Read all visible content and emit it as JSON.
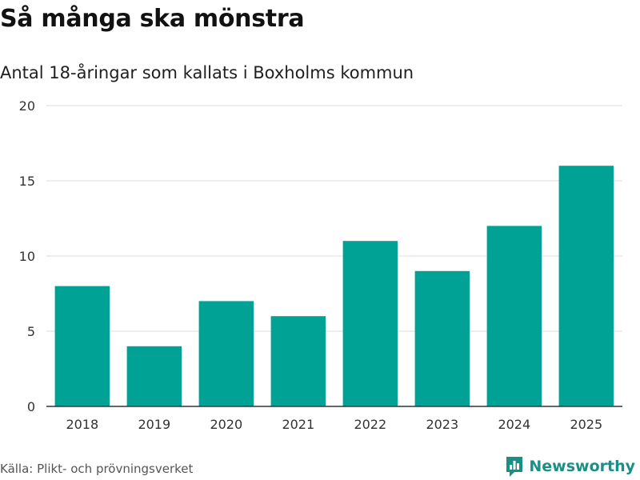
{
  "title": "Så många ska mönstra",
  "subtitle": "Antal 18-åringar som kallats i Boxholms kommun",
  "source": "Källa: Plikt- och prövningsverket",
  "brand": {
    "name": "Newsworthy",
    "logo_icon": "newsworthy-bar-chart-logo",
    "color": "#1a8f86"
  },
  "colors": {
    "bar": "#00a295",
    "grid": "#dddddd",
    "axis": "#333333"
  },
  "chart_data": {
    "type": "bar",
    "title": "Så många ska mönstra",
    "subtitle": "Antal 18-åringar som kallats i Boxholms kommun",
    "xlabel": "",
    "ylabel": "",
    "categories": [
      "2018",
      "2019",
      "2020",
      "2021",
      "2022",
      "2023",
      "2024",
      "2025"
    ],
    "values": [
      8,
      4,
      7,
      6,
      11,
      9,
      12,
      16
    ],
    "ylim": [
      0,
      20
    ],
    "yticks": [
      0,
      5,
      10,
      15,
      20
    ],
    "grid": true,
    "legend": "none"
  }
}
